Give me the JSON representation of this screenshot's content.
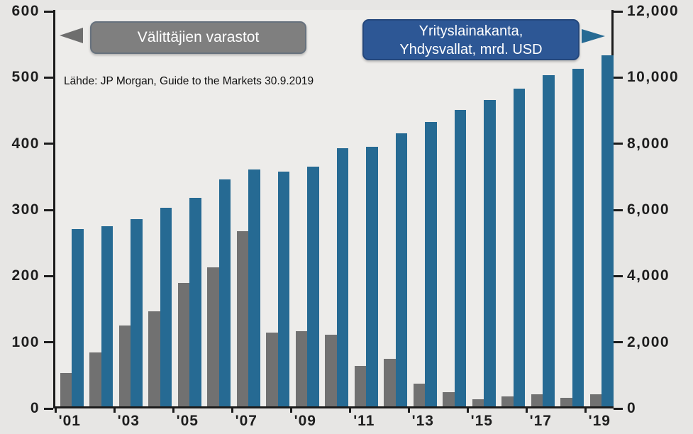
{
  "chart_data": {
    "type": "bar",
    "title": "",
    "categories": [
      "'01",
      "'02",
      "'03",
      "'04",
      "'05",
      "'06",
      "'07",
      "'08",
      "'09",
      "'10",
      "'11",
      "'12",
      "'13",
      "'14",
      "'15",
      "'16",
      "'17",
      "'18",
      "'19"
    ],
    "x_tick_labels": [
      "'01",
      "'03",
      "'05",
      "'07",
      "'09",
      "'11",
      "'13",
      "'15",
      "'17",
      "'19"
    ],
    "series": [
      {
        "name": "Välittäjien varastot",
        "axis": "left",
        "color": "#717171",
        "values": [
          50,
          82,
          122,
          144,
          187,
          210,
          265,
          112,
          114,
          108,
          61,
          72,
          34,
          22,
          11,
          15,
          18,
          13,
          18
        ]
      },
      {
        "name": "Yrityslainakanta, Yhdysvallat, mrd. USD",
        "axis": "right",
        "color": "#266a93",
        "values": [
          5350,
          5450,
          5650,
          6000,
          6300,
          6850,
          7150,
          7100,
          7250,
          7800,
          7850,
          8250,
          8600,
          8950,
          9250,
          9600,
          10000,
          10200,
          10600
        ]
      }
    ],
    "left_axis": {
      "min": 0,
      "max": 600,
      "tick_labels": [
        "600",
        "500",
        "400",
        "300",
        "200",
        "100",
        "0"
      ]
    },
    "right_axis": {
      "min": 0,
      "max": 12000,
      "tick_labels": [
        "12,000",
        "10,000",
        "8,000",
        "6,000",
        "4,000",
        "2,000",
        "0"
      ]
    },
    "grid": false,
    "legend_position": "top-callouts"
  },
  "annotations": {
    "inventory_label": "Välittäjien varastot",
    "loans_label_line1": "Yrityslainakanta,",
    "loans_label_line2": "Yhdysvallat, mrd. USD",
    "source": "Lähde: JP Morgan, Guide to the Markets 30.9.2019"
  },
  "colors": {
    "inventory_bar": "#717171",
    "loans_bar": "#266a93",
    "inventory_box_bg": "#7f7f7f",
    "inventory_box_border": "#67727e",
    "loans_box_bg": "#2d5795",
    "loans_box_border": "#24477c",
    "axis": "#1c1c1c",
    "background": "#e7e6e4",
    "plot_background": "#edecea"
  }
}
